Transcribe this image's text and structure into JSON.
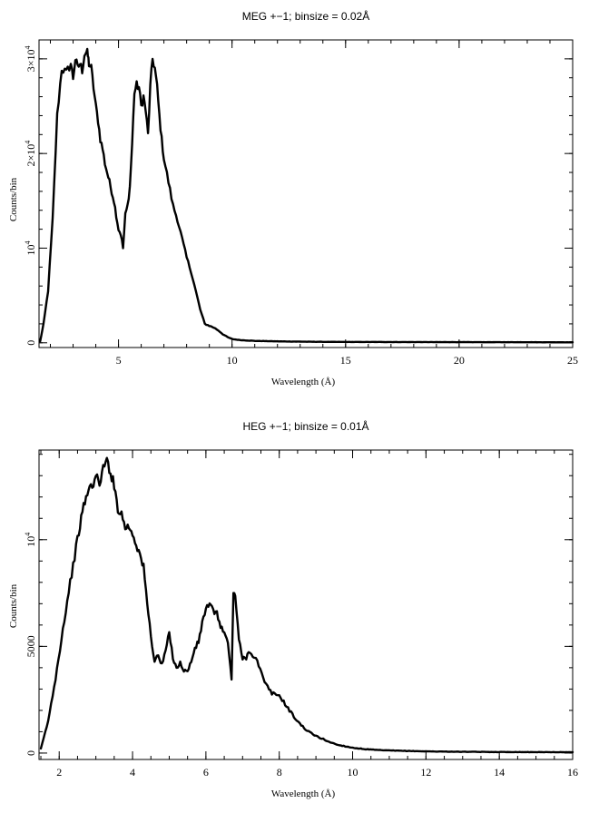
{
  "chart_data": [
    {
      "type": "line",
      "title": "MEG +−1; binsize = 0.02Å",
      "xlabel": "Wavelength (Å)",
      "ylabel": "Counts/bin",
      "xlim": [
        1.5,
        25
      ],
      "ylim": [
        -500,
        32000
      ],
      "xticks_major": [
        5,
        10,
        15,
        20,
        25
      ],
      "xtick_labels": [
        "5",
        "10",
        "15",
        "20",
        "25"
      ],
      "xticks_minor_step": 1,
      "yticks_major": [
        0,
        10000,
        20000,
        30000
      ],
      "ytick_labels": [
        {
          "base": "0",
          "exp": ""
        },
        {
          "base": "10",
          "exp": "4"
        },
        {
          "base": "2×10",
          "exp": "4"
        },
        {
          "base": "3×10",
          "exp": "4"
        }
      ],
      "yticks_minor_step": 2000,
      "x": [
        1.55,
        1.7,
        1.9,
        2.1,
        2.3,
        2.5,
        2.7,
        2.9,
        3.0,
        3.1,
        3.2,
        3.3,
        3.4,
        3.5,
        3.6,
        3.65,
        3.7,
        3.8,
        3.9,
        4.0,
        4.1,
        4.2,
        4.3,
        4.4,
        4.5,
        4.6,
        4.7,
        4.8,
        4.9,
        5.0,
        5.1,
        5.2,
        5.3,
        5.4,
        5.5,
        5.6,
        5.7,
        5.8,
        5.9,
        6.0,
        6.1,
        6.2,
        6.3,
        6.4,
        6.5,
        6.6,
        6.7,
        6.8,
        6.9,
        7.0,
        7.2,
        7.4,
        7.6,
        7.8,
        8.0,
        8.2,
        8.4,
        8.6,
        8.8,
        9.0,
        9.2,
        9.4,
        9.6,
        9.8,
        10.0,
        10.3,
        10.6,
        11.0,
        11.5,
        12.0,
        13.0,
        14.0,
        15.0,
        17.0,
        20.0,
        23.0,
        25.0
      ],
      "y": [
        150,
        2000,
        5500,
        13000,
        24000,
        29000,
        28500,
        29500,
        28000,
        30000,
        29000,
        29500,
        28800,
        30500,
        30800,
        30300,
        29500,
        29000,
        27000,
        25000,
        23500,
        21500,
        20500,
        19000,
        18000,
        17000,
        16000,
        15000,
        13500,
        12000,
        11500,
        10000,
        13500,
        14500,
        16500,
        21000,
        26500,
        27200,
        27000,
        25000,
        26000,
        24500,
        22000,
        27000,
        30000,
        29000,
        27000,
        24000,
        21500,
        19500,
        17000,
        14500,
        13000,
        11000,
        9000,
        7500,
        5500,
        3500,
        2000,
        1800,
        1600,
        1300,
        900,
        600,
        400,
        300,
        250,
        200,
        180,
        150,
        120,
        100,
        90,
        80,
        70,
        60,
        50
      ]
    },
    {
      "type": "line",
      "title": "HEG +−1; binsize = 0.01Å",
      "xlabel": "Wavelength (Å)",
      "ylabel": "Counts/bin",
      "xlim": [
        1.45,
        16
      ],
      "ylim": [
        -300,
        14200
      ],
      "xticks_major": [
        2,
        4,
        6,
        8,
        10,
        12,
        14,
        16
      ],
      "xtick_labels": [
        "2",
        "4",
        "6",
        "8",
        "10",
        "12",
        "14",
        "16"
      ],
      "xticks_minor_step": 0.5,
      "yticks_major": [
        0,
        5000,
        10000
      ],
      "ytick_labels": [
        {
          "base": "0",
          "exp": ""
        },
        {
          "base": "5000",
          "exp": ""
        },
        {
          "base": "10",
          "exp": "4"
        }
      ],
      "yticks_minor_step": 1000,
      "x": [
        1.5,
        1.7,
        1.9,
        2.1,
        2.3,
        2.5,
        2.6,
        2.7,
        2.8,
        2.9,
        3.0,
        3.1,
        3.2,
        3.3,
        3.4,
        3.5,
        3.6,
        3.7,
        3.8,
        3.9,
        4.0,
        4.1,
        4.2,
        4.3,
        4.4,
        4.5,
        4.6,
        4.7,
        4.8,
        4.9,
        5.0,
        5.1,
        5.2,
        5.3,
        5.4,
        5.5,
        5.6,
        5.7,
        5.8,
        5.9,
        6.0,
        6.1,
        6.2,
        6.3,
        6.4,
        6.5,
        6.6,
        6.7,
        6.75,
        6.8,
        6.9,
        7.0,
        7.1,
        7.2,
        7.4,
        7.6,
        7.8,
        8.0,
        8.2,
        8.4,
        8.6,
        8.8,
        9.0,
        9.2,
        9.4,
        9.6,
        9.8,
        10.0,
        10.3,
        10.6,
        11.0,
        11.5,
        12.0,
        13.0,
        14.0,
        15.0,
        16.0
      ],
      "y": [
        200,
        1500,
        3500,
        5800,
        8000,
        10000,
        11000,
        11800,
        12300,
        12600,
        12900,
        12700,
        13300,
        13700,
        13200,
        12500,
        11500,
        11200,
        10600,
        10600,
        10300,
        9800,
        9300,
        8700,
        7000,
        5500,
        4300,
        4600,
        4100,
        4800,
        5600,
        4500,
        4000,
        4200,
        3900,
        3800,
        4300,
        4900,
        5200,
        6100,
        6800,
        6900,
        6700,
        6500,
        6000,
        5600,
        5200,
        3400,
        7600,
        7400,
        5300,
        4400,
        4500,
        4800,
        4300,
        3300,
        2800,
        2700,
        2200,
        1700,
        1300,
        1000,
        800,
        650,
        500,
        380,
        320,
        250,
        190,
        150,
        120,
        100,
        80,
        60,
        50,
        45,
        40
      ]
    }
  ]
}
